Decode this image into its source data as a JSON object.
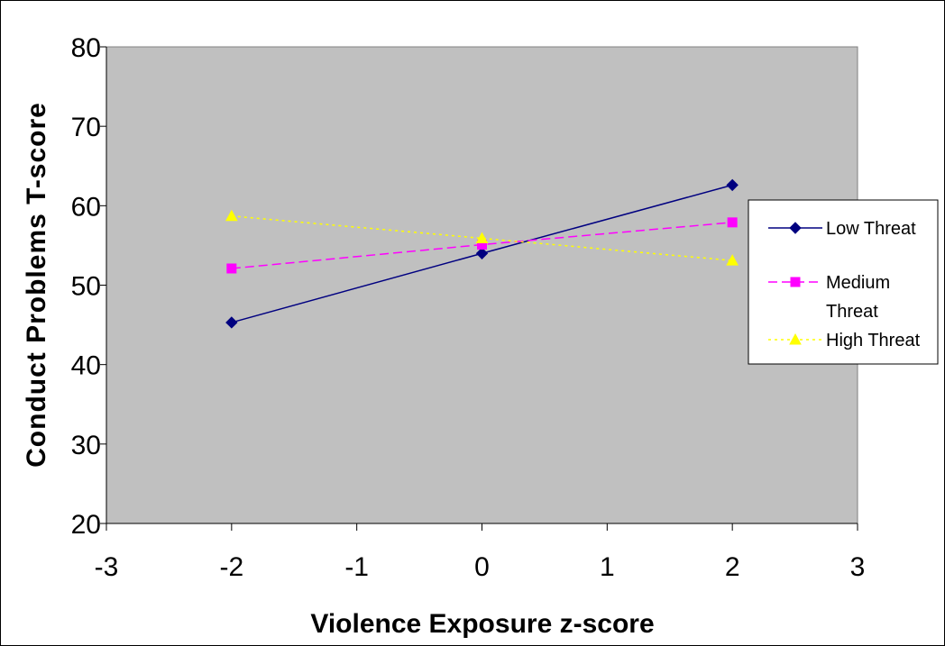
{
  "chart_data": {
    "type": "line",
    "xlabel": "Violence Exposure z-score",
    "ylabel": "Conduct Problems T-score",
    "xlim": [
      -3,
      3
    ],
    "ylim": [
      20,
      80
    ],
    "x_ticks": [
      -3,
      -2,
      -1,
      0,
      1,
      2,
      3
    ],
    "y_ticks": [
      20,
      30,
      40,
      50,
      60,
      70,
      80
    ],
    "grid": false,
    "plot_background": "#c0c0c0",
    "legend_position": "right",
    "series": [
      {
        "name": "Low Threat",
        "x": [
          -2,
          0,
          2
        ],
        "y": [
          45.3,
          54.0,
          62.6
        ],
        "color": "#000080",
        "marker": "diamond",
        "dash": "solid"
      },
      {
        "name": "Medium Threat",
        "x": [
          -2,
          0,
          2
        ],
        "y": [
          52.1,
          55.1,
          57.9
        ],
        "color": "#ff00ff",
        "marker": "square",
        "dash": "dashed"
      },
      {
        "name": "High Threat",
        "x": [
          -2,
          0,
          2
        ],
        "y": [
          58.7,
          55.9,
          53.1
        ],
        "color": "#ffff00",
        "marker": "triangle",
        "dash": "dotted"
      }
    ]
  }
}
